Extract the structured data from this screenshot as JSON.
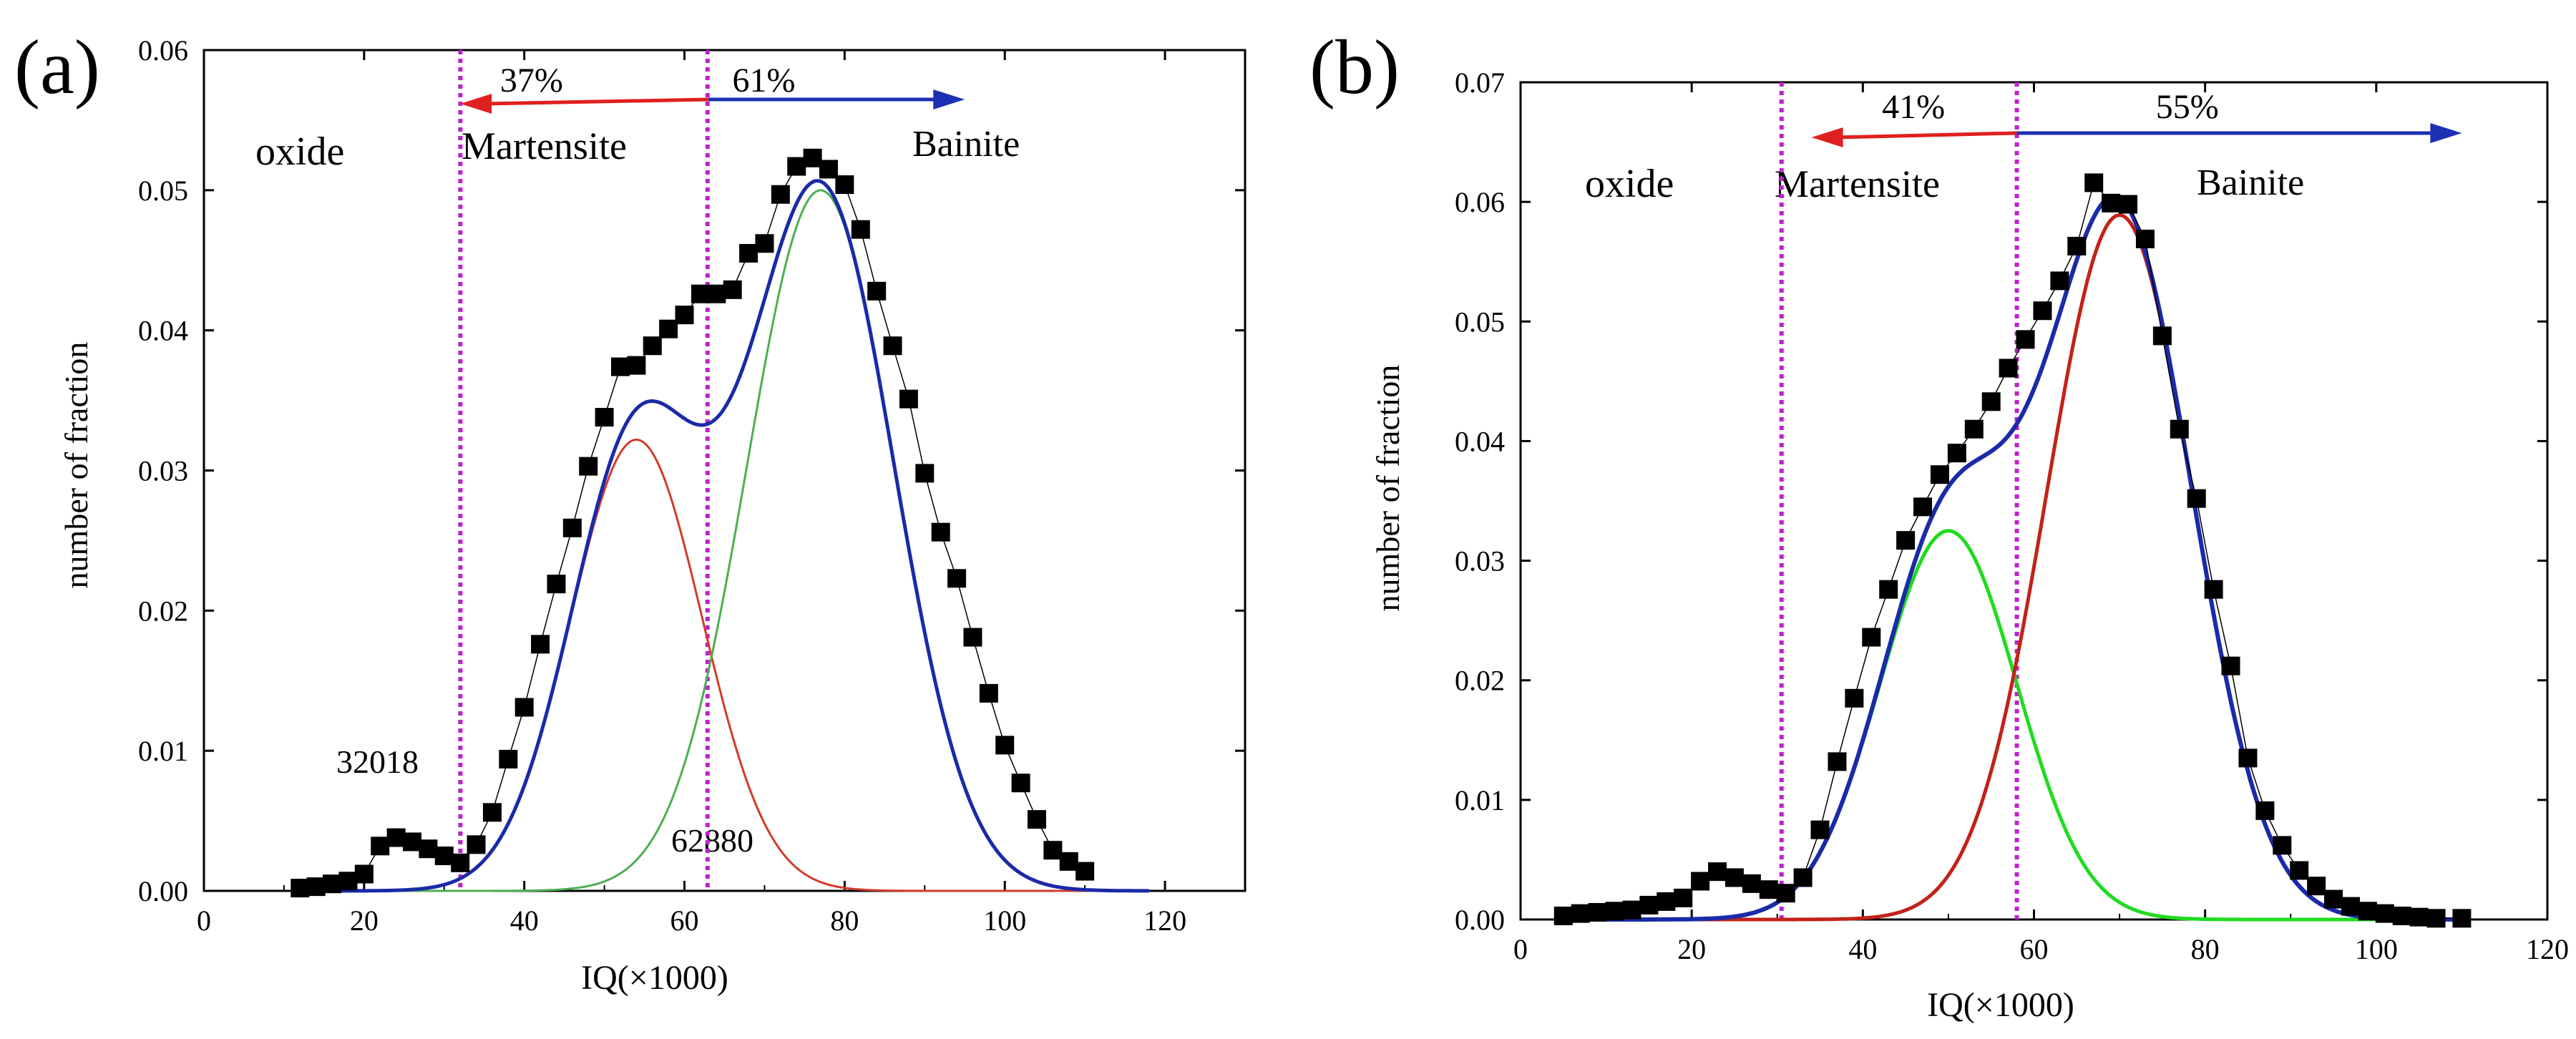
{
  "chart_data": [
    {
      "panel_label": "(a)",
      "type": "scatter",
      "title": "",
      "xlabel": "IQ(×1000)",
      "ylabel": "number of fraction",
      "xlim": [
        0,
        130
      ],
      "ylim": [
        0,
        0.06
      ],
      "xticks": [
        "0",
        "20",
        "40",
        "60",
        "80",
        "100",
        "120"
      ],
      "yticks": [
        "0.00",
        "0.01",
        "0.02",
        "0.03",
        "0.04",
        "0.05",
        "0.06"
      ],
      "vlines": [
        32.018,
        62.88
      ],
      "vline_labels": [
        "32018",
        "62880"
      ],
      "region_text": "oxide",
      "martensite_label": "Martensite",
      "bainite_label": "Bainite",
      "martensite_pct": "37%",
      "bainite_pct": "61%",
      "arrow_left": [
        32.0,
        63.0
      ],
      "arrow_right": [
        63.0,
        95.0
      ],
      "pct_positions": [
        41,
        70
      ],
      "colors": {
        "martensite": "#e0201e",
        "bainite": "#1c30b4",
        "vline": "#c020d0",
        "data": "#000000"
      },
      "series": [
        {
          "name": "Data",
          "kind": "points",
          "x": [
            12,
            14,
            16,
            18,
            20,
            22,
            24,
            26,
            28,
            30,
            32,
            34,
            36,
            38,
            40,
            42,
            44,
            46,
            48,
            50,
            52,
            54,
            56,
            58,
            60,
            62,
            64,
            66,
            68,
            70,
            72,
            74,
            76,
            78,
            80,
            82,
            84,
            86,
            88,
            90,
            92,
            94,
            96,
            98,
            100,
            102,
            104,
            106,
            108,
            110
          ],
          "y": [
            0.0002,
            0.0003,
            0.0005,
            0.0007,
            0.0012,
            0.0032,
            0.0038,
            0.0035,
            0.003,
            0.0025,
            0.002,
            0.0033,
            0.0056,
            0.0094,
            0.0131,
            0.0176,
            0.0219,
            0.0259,
            0.0303,
            0.0338,
            0.0374,
            0.0375,
            0.0389,
            0.0401,
            0.0411,
            0.0426,
            0.0426,
            0.0429,
            0.0455,
            0.0462,
            0.0497,
            0.0517,
            0.0523,
            0.0515,
            0.0504,
            0.0472,
            0.0428,
            0.0389,
            0.0351,
            0.0298,
            0.0256,
            0.0223,
            0.0181,
            0.0141,
            0.0104,
            0.0077,
            0.0051,
            0.0029,
            0.0021,
            0.0014
          ]
        },
        {
          "name": "Peak 1 (Martensite)",
          "kind": "gaussian",
          "mu": 54,
          "sigma": 8.2,
          "amp": 0.0322,
          "color": "#d23b2a",
          "width": 3
        },
        {
          "name": "Peak 2 (Bainite)",
          "kind": "gaussian",
          "mu": 77,
          "sigma": 9.2,
          "amp": 0.05,
          "color": "#4caf50",
          "width": 3
        },
        {
          "name": "Cumulative fit",
          "kind": "sum",
          "color": "#1a2aa8",
          "width": 5
        }
      ]
    },
    {
      "panel_label": "(b)",
      "type": "scatter",
      "title": "",
      "xlabel": "IQ(×1000)",
      "ylabel": "number of fraction",
      "xlim": [
        0,
        120
      ],
      "ylim": [
        0,
        0.07
      ],
      "xticks": [
        "0",
        "20",
        "40",
        "60",
        "80",
        "100",
        "120"
      ],
      "yticks": [
        "0.00",
        "0.01",
        "0.02",
        "0.03",
        "0.04",
        "0.05",
        "0.06",
        "0.07"
      ],
      "vlines": [
        30.5,
        58.0
      ],
      "vline_labels": [],
      "region_text": "oxide",
      "martensite_label": "Martensite",
      "bainite_label": "Bainite",
      "martensite_pct": "41%",
      "bainite_pct": "55%",
      "arrow_left": [
        34.0,
        58.0
      ],
      "arrow_right": [
        58.0,
        110.0
      ],
      "pct_positions": [
        46,
        78
      ],
      "colors": {
        "martensite": "#e0201e",
        "bainite": "#1c30b4",
        "vline": "#c020d0",
        "data": "#000000"
      },
      "series": [
        {
          "name": "Data",
          "kind": "points",
          "x": [
            5,
            7,
            9,
            11,
            13,
            15,
            17,
            19,
            21,
            23,
            25,
            27,
            29,
            31,
            33,
            35,
            37,
            39,
            41,
            43,
            45,
            47,
            49,
            51,
            53,
            55,
            57,
            59,
            61,
            63,
            65,
            67,
            69,
            71,
            73,
            75,
            77,
            79,
            81,
            83,
            85,
            87,
            89,
            91,
            93,
            95,
            97,
            99,
            101,
            103,
            105,
            107,
            110
          ],
          "y": [
            0.0003,
            0.0005,
            0.0006,
            0.0007,
            0.0008,
            0.0012,
            0.0015,
            0.0018,
            0.0032,
            0.004,
            0.0035,
            0.003,
            0.0025,
            0.0022,
            0.0035,
            0.0075,
            0.0132,
            0.0185,
            0.0236,
            0.0276,
            0.0317,
            0.0345,
            0.0372,
            0.039,
            0.041,
            0.0433,
            0.0461,
            0.0485,
            0.0509,
            0.0534,
            0.0563,
            0.0616,
            0.0599,
            0.0598,
            0.0569,
            0.0488,
            0.041,
            0.0352,
            0.0276,
            0.0212,
            0.0135,
            0.0091,
            0.0062,
            0.0041,
            0.0028,
            0.0017,
            0.0011,
            0.0007,
            0.0005,
            0.0003,
            0.0002,
            0.0001,
            0.0001
          ]
        },
        {
          "name": "Peak 1 (Martensite)",
          "kind": "gaussian",
          "mu": 50,
          "sigma": 8.0,
          "amp": 0.0325,
          "color": "#1fdc1f",
          "width": 5
        },
        {
          "name": "Peak 2 (Bainite)",
          "kind": "gaussian",
          "mu": 70,
          "sigma": 8.5,
          "amp": 0.0589,
          "color": "#c22218",
          "width": 5
        },
        {
          "name": "Cumulative fit",
          "kind": "sum",
          "color": "#1a2aa8",
          "width": 6
        }
      ]
    }
  ]
}
